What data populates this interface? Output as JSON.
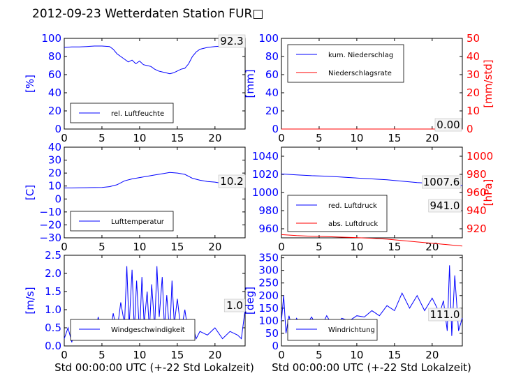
{
  "title": "2012-09-23 Wetterdaten Station FUR□",
  "x_label": "Std 00:00:00 UTC (+-22 Std Lokalzeit)",
  "colors": {
    "blue": "#0000ff",
    "red": "#ff0000",
    "axis": "#000000",
    "tick": "#0000ff"
  },
  "chart_data": [
    {
      "type": "line",
      "xlim": [
        0,
        24
      ],
      "ylim": [
        0,
        100
      ],
      "xticks": [
        0,
        5,
        10,
        15,
        20
      ],
      "yticks": [
        0,
        20,
        40,
        60,
        80,
        100
      ],
      "ylabel": "[%]",
      "legend": [
        "rel. Luftfeuchte"
      ],
      "last_value": "92.3",
      "series": [
        {
          "name": "rel. Luftfeuchte",
          "color": "#0000ff",
          "x": [
            0,
            1,
            2,
            3,
            4,
            5,
            6,
            6.5,
            7,
            7.5,
            8,
            8.5,
            9,
            9.5,
            10,
            10.5,
            11,
            11.5,
            12,
            12.5,
            13,
            13.5,
            14,
            14.5,
            15,
            15.5,
            16,
            16.5,
            17,
            17.5,
            18,
            19,
            20,
            21,
            22,
            23,
            24
          ],
          "y": [
            90,
            90.5,
            90.5,
            91,
            91.5,
            91.5,
            91,
            88,
            83,
            80,
            77,
            74,
            76,
            72,
            75,
            71,
            70,
            69,
            66,
            64,
            63,
            62,
            61,
            62,
            64,
            66,
            67,
            72,
            80,
            85,
            88,
            90,
            91,
            91.5,
            92,
            92.3,
            92.3
          ]
        }
      ]
    },
    {
      "type": "line",
      "xlim": [
        0,
        24
      ],
      "ylim": [
        0,
        100
      ],
      "ylim_right": [
        0,
        50
      ],
      "xticks": [
        0,
        5,
        10,
        15,
        20
      ],
      "yticks": [
        0,
        20,
        40,
        60,
        80,
        100
      ],
      "yticks_right": [
        0,
        10,
        20,
        30,
        40,
        50
      ],
      "ylabel": "[mm]",
      "ylabel_right": "[mm/std]",
      "legend": [
        "kum. Niederschlag",
        "Niederschlagsrate"
      ],
      "last_value": "0.00",
      "series": [
        {
          "name": "kum. Niederschlag",
          "color": "#0000ff",
          "x": [
            0,
            24
          ],
          "y": [
            0,
            0
          ]
        },
        {
          "name": "Niederschlagsrate",
          "color": "#ff0000",
          "x": [
            0,
            24
          ],
          "y": [
            0,
            0
          ]
        }
      ]
    },
    {
      "type": "line",
      "xlim": [
        0,
        24
      ],
      "ylim": [
        -30,
        40
      ],
      "xticks": [
        0,
        5,
        10,
        15,
        20
      ],
      "yticks": [
        -30,
        -20,
        -10,
        0,
        10,
        20,
        30,
        40
      ],
      "ylabel": "[C]",
      "legend": [
        "Lufttemperatur"
      ],
      "last_value": "10.2",
      "series": [
        {
          "name": "Lufttemperatur",
          "color": "#0000ff",
          "x": [
            0,
            1,
            2,
            3,
            4,
            5,
            6,
            7,
            8,
            9,
            10,
            11,
            12,
            13,
            14,
            15,
            16,
            17,
            18,
            19,
            20,
            21,
            22,
            23,
            24
          ],
          "y": [
            8.5,
            8.5,
            8.6,
            8.7,
            8.8,
            8.9,
            9.5,
            11,
            14,
            15.5,
            16.5,
            17.5,
            18.5,
            19.5,
            20.5,
            20,
            19,
            16,
            14.5,
            13.5,
            13,
            12,
            11.5,
            10.8,
            10.2
          ]
        }
      ]
    },
    {
      "type": "line",
      "xlim": [
        0,
        24
      ],
      "ylim": [
        950,
        1050
      ],
      "ylim_right": [
        910,
        1010
      ],
      "xticks": [
        0,
        5,
        10,
        15,
        20
      ],
      "yticks": [
        960,
        980,
        1000,
        1020,
        1040
      ],
      "yticks_right": [
        920,
        940,
        960,
        980,
        1000
      ],
      "ylabel": "",
      "ylabel_right": "[hPa]",
      "legend": [
        "red. Luftdruck",
        "abs. Luftdruck"
      ],
      "last_value": "1007.6",
      "last_value_2": "941.0",
      "series": [
        {
          "name": "red. Luftdruck",
          "color": "#0000ff",
          "x": [
            0,
            2,
            4,
            6,
            8,
            10,
            12,
            14,
            16,
            18,
            20,
            22,
            24
          ],
          "y": [
            1020.5,
            1019.5,
            1018.5,
            1018,
            1017,
            1016,
            1015,
            1014,
            1012.5,
            1011,
            1010,
            1009,
            1007.6
          ]
        },
        {
          "name": "abs. Luftdruck",
          "color": "#ff0000",
          "x": [
            0,
            2,
            4,
            6,
            8,
            10,
            12,
            14,
            16,
            18,
            20,
            22,
            24
          ],
          "y": [
            953.5,
            952.5,
            951.8,
            951.3,
            950.8,
            950.2,
            949.5,
            948.5,
            947,
            945.5,
            944,
            942.5,
            941
          ]
        }
      ]
    },
    {
      "type": "line",
      "xlim": [
        0,
        24
      ],
      "ylim": [
        0,
        2.5
      ],
      "xticks": [
        0,
        5,
        10,
        15,
        20
      ],
      "yticks": [
        0,
        0.5,
        1.0,
        1.5,
        2.0,
        2.5
      ],
      "ylabel": "[m/s]",
      "legend": [
        "Windgeschwindigkeit"
      ],
      "last_value": "1.0",
      "series": [
        {
          "name": "Windgeschwindigkeit",
          "color": "#0000ff",
          "x": [
            0,
            0.5,
            1,
            1.5,
            2,
            2.5,
            3,
            3.5,
            4,
            4.5,
            5,
            5.5,
            6,
            6.5,
            7,
            7.5,
            8,
            8.3,
            8.6,
            9,
            9.3,
            9.6,
            10,
            10.3,
            10.6,
            11,
            11.3,
            11.6,
            12,
            12.3,
            12.6,
            13,
            13.3,
            13.6,
            14,
            14.3,
            14.6,
            15,
            15.5,
            16,
            16.5,
            17,
            17.5,
            18,
            19,
            20,
            21,
            22,
            23,
            23.5,
            24
          ],
          "y": [
            0.2,
            0.5,
            0.1,
            0.6,
            0.2,
            0.7,
            0.3,
            0.6,
            0.2,
            0.8,
            0.3,
            0.7,
            0.2,
            0.9,
            0.4,
            1.2,
            0.6,
            2.2,
            0.5,
            2.1,
            0.4,
            1.8,
            0.3,
            1.9,
            0.6,
            1.5,
            0.4,
            1.7,
            0.5,
            2.2,
            0.8,
            1.9,
            0.5,
            1.4,
            0.3,
            1.8,
            0.6,
            1.3,
            0.4,
            1.0,
            0.3,
            0.6,
            0.2,
            0.4,
            0.3,
            0.5,
            0.2,
            0.4,
            0.3,
            0.2,
            1.0
          ]
        }
      ]
    },
    {
      "type": "line",
      "xlim": [
        0,
        24
      ],
      "ylim": [
        0,
        360
      ],
      "xticks": [
        0,
        5,
        10,
        15,
        20
      ],
      "yticks": [
        0,
        50,
        100,
        150,
        200,
        250,
        300,
        350
      ],
      "ylabel": "[deg]",
      "legend": [
        "Windrichtung"
      ],
      "last_value": "111.0",
      "series": [
        {
          "name": "Windrichtung",
          "color": "#0000ff",
          "x": [
            0,
            0.3,
            0.6,
            1,
            1.5,
            2,
            3,
            4,
            5,
            6,
            7,
            8,
            9,
            10,
            11,
            12,
            13,
            14,
            15,
            16,
            17,
            18,
            19,
            20,
            21,
            21.5,
            22,
            22.3,
            22.6,
            23,
            23.5,
            24
          ],
          "y": [
            100,
            200,
            50,
            120,
            60,
            110,
            70,
            115,
            60,
            120,
            70,
            110,
            100,
            120,
            115,
            140,
            120,
            160,
            140,
            210,
            150,
            200,
            140,
            190,
            130,
            180,
            60,
            320,
            40,
            280,
            60,
            111
          ]
        }
      ]
    }
  ]
}
